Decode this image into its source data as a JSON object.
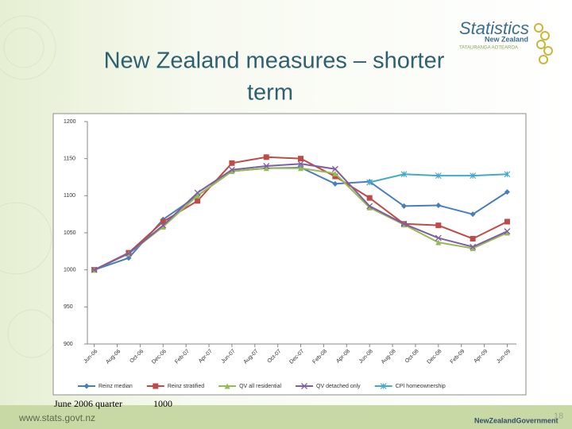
{
  "slide": {
    "title": "New Zealand measures – shorter term",
    "logo_name": "Statistics",
    "logo_sub": "New Zealand",
    "logo_maori": "TATAURANGA AOTEAROA",
    "footer_url": "www.stats.govt.nz",
    "note_label": "June 2006 quarter",
    "note_value": 1000,
    "government": "NewZealandGovernment",
    "page_number": 18
  },
  "chart_data": {
    "type": "line",
    "x": [
      0,
      3,
      6,
      9,
      12,
      15,
      18,
      21,
      24,
      27,
      30,
      33,
      36
    ],
    "xlim": [
      -0.6,
      36.8
    ],
    "xticks": [
      {
        "value": 0,
        "label": "Jun-06"
      },
      {
        "value": 2,
        "label": "Aug-06"
      },
      {
        "value": 4,
        "label": "Oct-06"
      },
      {
        "value": 6,
        "label": "Dec-06"
      },
      {
        "value": 8,
        "label": "Feb-07"
      },
      {
        "value": 10,
        "label": "Apr-07"
      },
      {
        "value": 12,
        "label": "Jun-07"
      },
      {
        "value": 14,
        "label": "Aug-07"
      },
      {
        "value": 16,
        "label": "Oct-07"
      },
      {
        "value": 18,
        "label": "Dec-07"
      },
      {
        "value": 20,
        "label": "Feb-08"
      },
      {
        "value": 22,
        "label": "Apr-08"
      },
      {
        "value": 24,
        "label": "Jun-08"
      },
      {
        "value": 26,
        "label": "Aug-08"
      },
      {
        "value": 28,
        "label": "Oct-08"
      },
      {
        "value": 30,
        "label": "Dec-08"
      },
      {
        "value": 32,
        "label": "Feb-09"
      },
      {
        "value": 34,
        "label": "Apr-09"
      },
      {
        "value": 36,
        "label": "Jun-09"
      }
    ],
    "ylim": [
      900,
      1200
    ],
    "yticks": [
      900,
      950,
      1000,
      1050,
      1100,
      1150,
      1200
    ],
    "grid": false,
    "legend": "bottom",
    "series": [
      {
        "name": "Reinz median",
        "color": "#4a7ebb",
        "marker": "diamond",
        "values": [
          1000,
          1016,
          1068,
          1100,
          1133,
          1137,
          1138,
          1116,
          1119,
          1086,
          1087,
          1075,
          1105
        ]
      },
      {
        "name": "Reinz stratified",
        "color": "#be4b48",
        "marker": "square",
        "values": [
          1000,
          1023,
          1065,
          1093,
          1144,
          1152,
          1150,
          1126,
          1097,
          1062,
          1060,
          1042,
          1065
        ]
      },
      {
        "name": "QV all residential",
        "color": "#98b954",
        "marker": "triangle",
        "values": [
          1000,
          1022,
          1058,
          1100,
          1133,
          1137,
          1137,
          1130,
          1084,
          1061,
          1037,
          1029,
          1050
        ]
      },
      {
        "name": "QV detached only",
        "color": "#7d60a0",
        "marker": "x",
        "values": [
          1000,
          1022,
          1060,
          1104,
          1135,
          1140,
          1143,
          1136,
          1086,
          1062,
          1043,
          1031,
          1052
        ]
      },
      {
        "name": "CPI homeownership",
        "color": "#46aac5",
        "marker": "star",
        "values": [
          null,
          null,
          null,
          null,
          null,
          null,
          null,
          null,
          1118,
          1129,
          1127,
          1127,
          1129
        ]
      }
    ]
  }
}
